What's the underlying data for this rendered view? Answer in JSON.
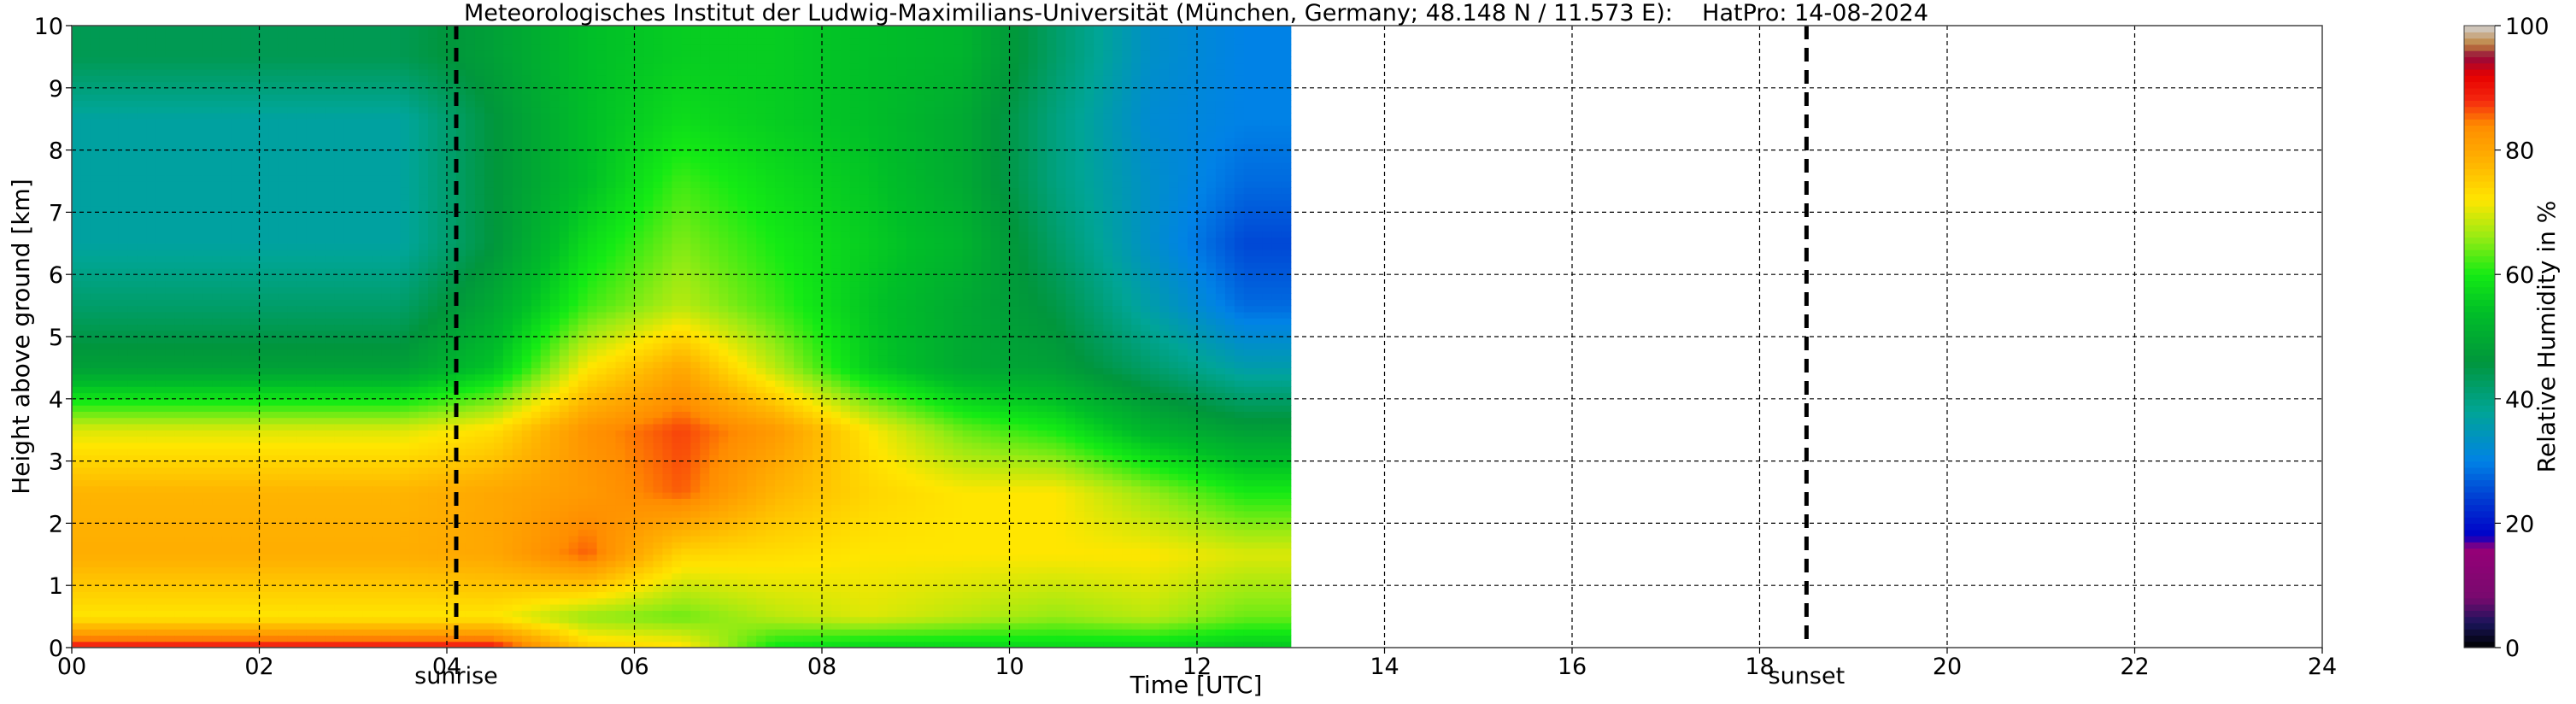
{
  "chart_data": {
    "type": "heatmap",
    "title": "Meteorologisches Institut der Ludwig-Maximilians-Universität (München, Germany; 48.148 N / 11.573 E):    HatPro: 14-08-2024",
    "xlabel": "Time [UTC]",
    "ylabel": "Height above ground [km]",
    "xlim": [
      0,
      24
    ],
    "ylim": [
      0,
      10
    ],
    "x_ticks": [
      "00",
      "02",
      "04",
      "06",
      "08",
      "10",
      "12",
      "14",
      "16",
      "18",
      "20",
      "22",
      "24"
    ],
    "y_ticks": [
      "0",
      "1",
      "2",
      "3",
      "4",
      "5",
      "6",
      "7",
      "8",
      "9",
      "10"
    ],
    "grid": true,
    "data_end_time": 13.0,
    "markers": [
      {
        "label": "sunrise",
        "time": 4.1
      },
      {
        "label": "sunset",
        "time": 18.5
      }
    ],
    "colorbar": {
      "label": "Relative Humidity in %",
      "range": [
        0,
        100
      ],
      "ticks": [
        "0",
        "20",
        "40",
        "60",
        "80",
        "100"
      ]
    },
    "humidity_profile": {
      "heights_km": [
        0.05,
        0.5,
        1.5,
        2.5,
        3.5,
        4.5,
        5.5,
        6.5,
        7.5,
        8.5,
        9.5
      ],
      "times_utc": [
        0.5,
        1.5,
        2.5,
        3.5,
        4.5,
        5.5,
        6.5,
        7.5,
        8.5,
        9.5,
        10.5,
        11.5,
        12.5
      ],
      "values": [
        [
          88,
          88,
          88,
          88,
          88,
          74,
          72,
          60,
          58,
          58,
          58,
          58,
          56
        ],
        [
          72,
          72,
          72,
          72,
          72,
          66,
          64,
          68,
          70,
          68,
          66,
          68,
          64
        ],
        [
          79,
          79,
          79,
          79,
          80,
          86,
          74,
          73,
          72,
          72,
          72,
          72,
          70
        ],
        [
          78,
          78,
          78,
          78,
          80,
          82,
          86,
          78,
          74,
          72,
          72,
          66,
          60
        ],
        [
          70,
          70,
          70,
          70,
          73,
          83,
          87,
          82,
          72,
          64,
          60,
          52,
          48
        ],
        [
          48,
          48,
          48,
          48,
          55,
          72,
          80,
          68,
          56,
          50,
          48,
          42,
          36
        ],
        [
          42,
          42,
          42,
          42,
          50,
          62,
          68,
          62,
          55,
          50,
          45,
          36,
          28
        ],
        [
          37,
          37,
          37,
          37,
          46,
          58,
          65,
          60,
          56,
          52,
          42,
          33,
          25
        ],
        [
          37,
          37,
          37,
          37,
          46,
          54,
          62,
          58,
          55,
          50,
          40,
          33,
          28
        ],
        [
          37,
          37,
          37,
          37,
          46,
          54,
          58,
          56,
          54,
          50,
          40,
          32,
          30
        ],
        [
          44,
          44,
          44,
          44,
          48,
          54,
          56,
          56,
          54,
          52,
          42,
          33,
          30
        ]
      ]
    }
  }
}
